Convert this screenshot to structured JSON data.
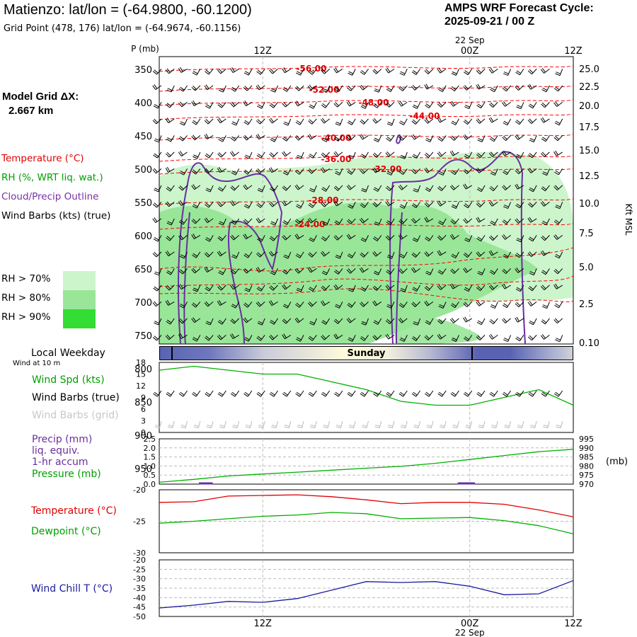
{
  "header": {
    "title": "Matienzo:  lat/lon = (-64.9800, -60.1200)",
    "subtitle": "Grid Point (478, 176) lat/lon = (-64.9674, -60.1156)",
    "cycle_label": "AMPS WRF Forecast Cycle:",
    "cycle_value": "2025-09-21 / 00  Z"
  },
  "model": {
    "label": "Model Grid ΔX:",
    "value": "2.667 km"
  },
  "legend": {
    "temperature": "Temperature (°C)",
    "rh": "RH (%, WRT liq. wat.)",
    "cloud": "Cloud/Precip Outline",
    "wind": "Wind Barbs (kts) (true)",
    "rh70": "RH > 70%",
    "rh80": "RH > 80%",
    "rh90": "RH > 90%"
  },
  "colors": {
    "temperature": "#ff0000",
    "rh_label": "#00a000",
    "cloud": "#6a2ea0",
    "rh70": "#ccf5cc",
    "rh80": "#99e699",
    "rh90": "#33dd33"
  },
  "time_axis": {
    "date_top": "22 Sep",
    "ticks": [
      "12Z",
      "00Z",
      "12Z"
    ],
    "date_bottom": "22 Sep"
  },
  "weekday": {
    "label": "Local Weekday",
    "day": "Sunday",
    "wind_note": "Wind at 10 m"
  },
  "chart_data": [
    {
      "type": "contour",
      "name": "sounding",
      "ylabel": "P (mb)",
      "yticks": [
        350,
        400,
        450,
        500,
        550,
        600,
        650,
        700,
        750,
        800,
        850,
        900,
        950
      ],
      "right_label": "Kft MSL",
      "right_ticks": [
        "25.0",
        "22.5",
        "20.0",
        "17.5",
        "15.0",
        "12.5",
        "10.0",
        "7.5",
        "5.0",
        "2.5",
        "0.10"
      ],
      "temperature_contours": [
        "-56.00",
        "-52.00",
        "-48.00",
        "-44.00",
        "-40.00",
        "-36.00",
        "-32.00",
        "-28.00",
        "-24.00"
      ]
    },
    {
      "type": "line",
      "name": "wind",
      "legend": [
        "Wind Spd (kts)",
        "Wind Barbs (true)",
        "Wind Barbs (grid)"
      ],
      "yticks": [
        0,
        3,
        6,
        9,
        12,
        15,
        18
      ],
      "ylim": [
        0,
        18
      ],
      "x": [
        0,
        2,
        4,
        6,
        8,
        10,
        12,
        14,
        16,
        18,
        20,
        22,
        24
      ],
      "series": [
        {
          "name": "Wind Spd (kts)",
          "values": [
            16,
            17,
            16,
            15,
            15,
            13,
            11,
            8,
            7,
            7,
            9,
            11,
            7
          ]
        }
      ]
    },
    {
      "type": "line",
      "name": "precip_pressure",
      "legend": [
        "Precip (mm)",
        "liq. equiv.",
        "1-hr accum",
        "Pressure (mb)"
      ],
      "yticks_left": [
        "0.0",
        "0.5",
        "1.0",
        "1.5",
        "2.0",
        "2.5"
      ],
      "yticks_right": [
        "970",
        "975",
        "980",
        "985",
        "990",
        "995"
      ],
      "right_unit": "(mb)",
      "x": [
        0,
        2,
        4,
        6,
        8,
        10,
        12,
        14,
        16,
        18,
        20,
        22,
        24
      ],
      "series": [
        {
          "name": "Pressure (mb)",
          "values": [
            971.0,
            972.6,
            974.5,
            975.6,
            976.6,
            977.7,
            978.8,
            979.8,
            981.5,
            983.6,
            985.8,
            987.9,
            989.2
          ]
        }
      ]
    },
    {
      "type": "line",
      "name": "temperature",
      "legend": [
        "Temperature (°C)",
        "Dewpoint (°C)"
      ],
      "ylim": [
        -30,
        -20
      ],
      "ytick_labels": [
        "-20",
        "-25",
        "-30"
      ],
      "x": [
        0,
        2,
        4,
        6,
        8,
        10,
        12,
        14,
        16,
        18,
        20,
        22,
        24
      ],
      "series": [
        {
          "name": "Temperature (°C)",
          "values": [
            -22.0,
            -21.9,
            -21.0,
            -20.9,
            -20.8,
            -21.1,
            -21.6,
            -22.2,
            -22.0,
            -22.0,
            -22.3,
            -23.2,
            -24.3
          ]
        },
        {
          "name": "Dewpoint (°C)",
          "values": [
            -25.3,
            -25.0,
            -24.6,
            -24.2,
            -24.0,
            -23.6,
            -23.8,
            -24.6,
            -24.5,
            -24.4,
            -24.9,
            -25.7,
            -27.0
          ]
        }
      ]
    },
    {
      "type": "line",
      "name": "wind_chill",
      "legend": [
        "Wind Chill T (°C)"
      ],
      "ylim": [
        -50,
        -20
      ],
      "ytick_labels": [
        "-20",
        "-25",
        "-30",
        "-35",
        "-40",
        "-45",
        "-50"
      ],
      "x": [
        0,
        2,
        4,
        6,
        8,
        10,
        12,
        14,
        16,
        18,
        20,
        22,
        24
      ],
      "series": [
        {
          "name": "Wind Chill T (°C)",
          "values": [
            -45.5,
            -44.0,
            -42.0,
            -42.5,
            -40.5,
            -36.0,
            -31.5,
            -32.0,
            -31.5,
            -34.0,
            -38.5,
            -38.0,
            -31.0
          ]
        }
      ]
    }
  ]
}
